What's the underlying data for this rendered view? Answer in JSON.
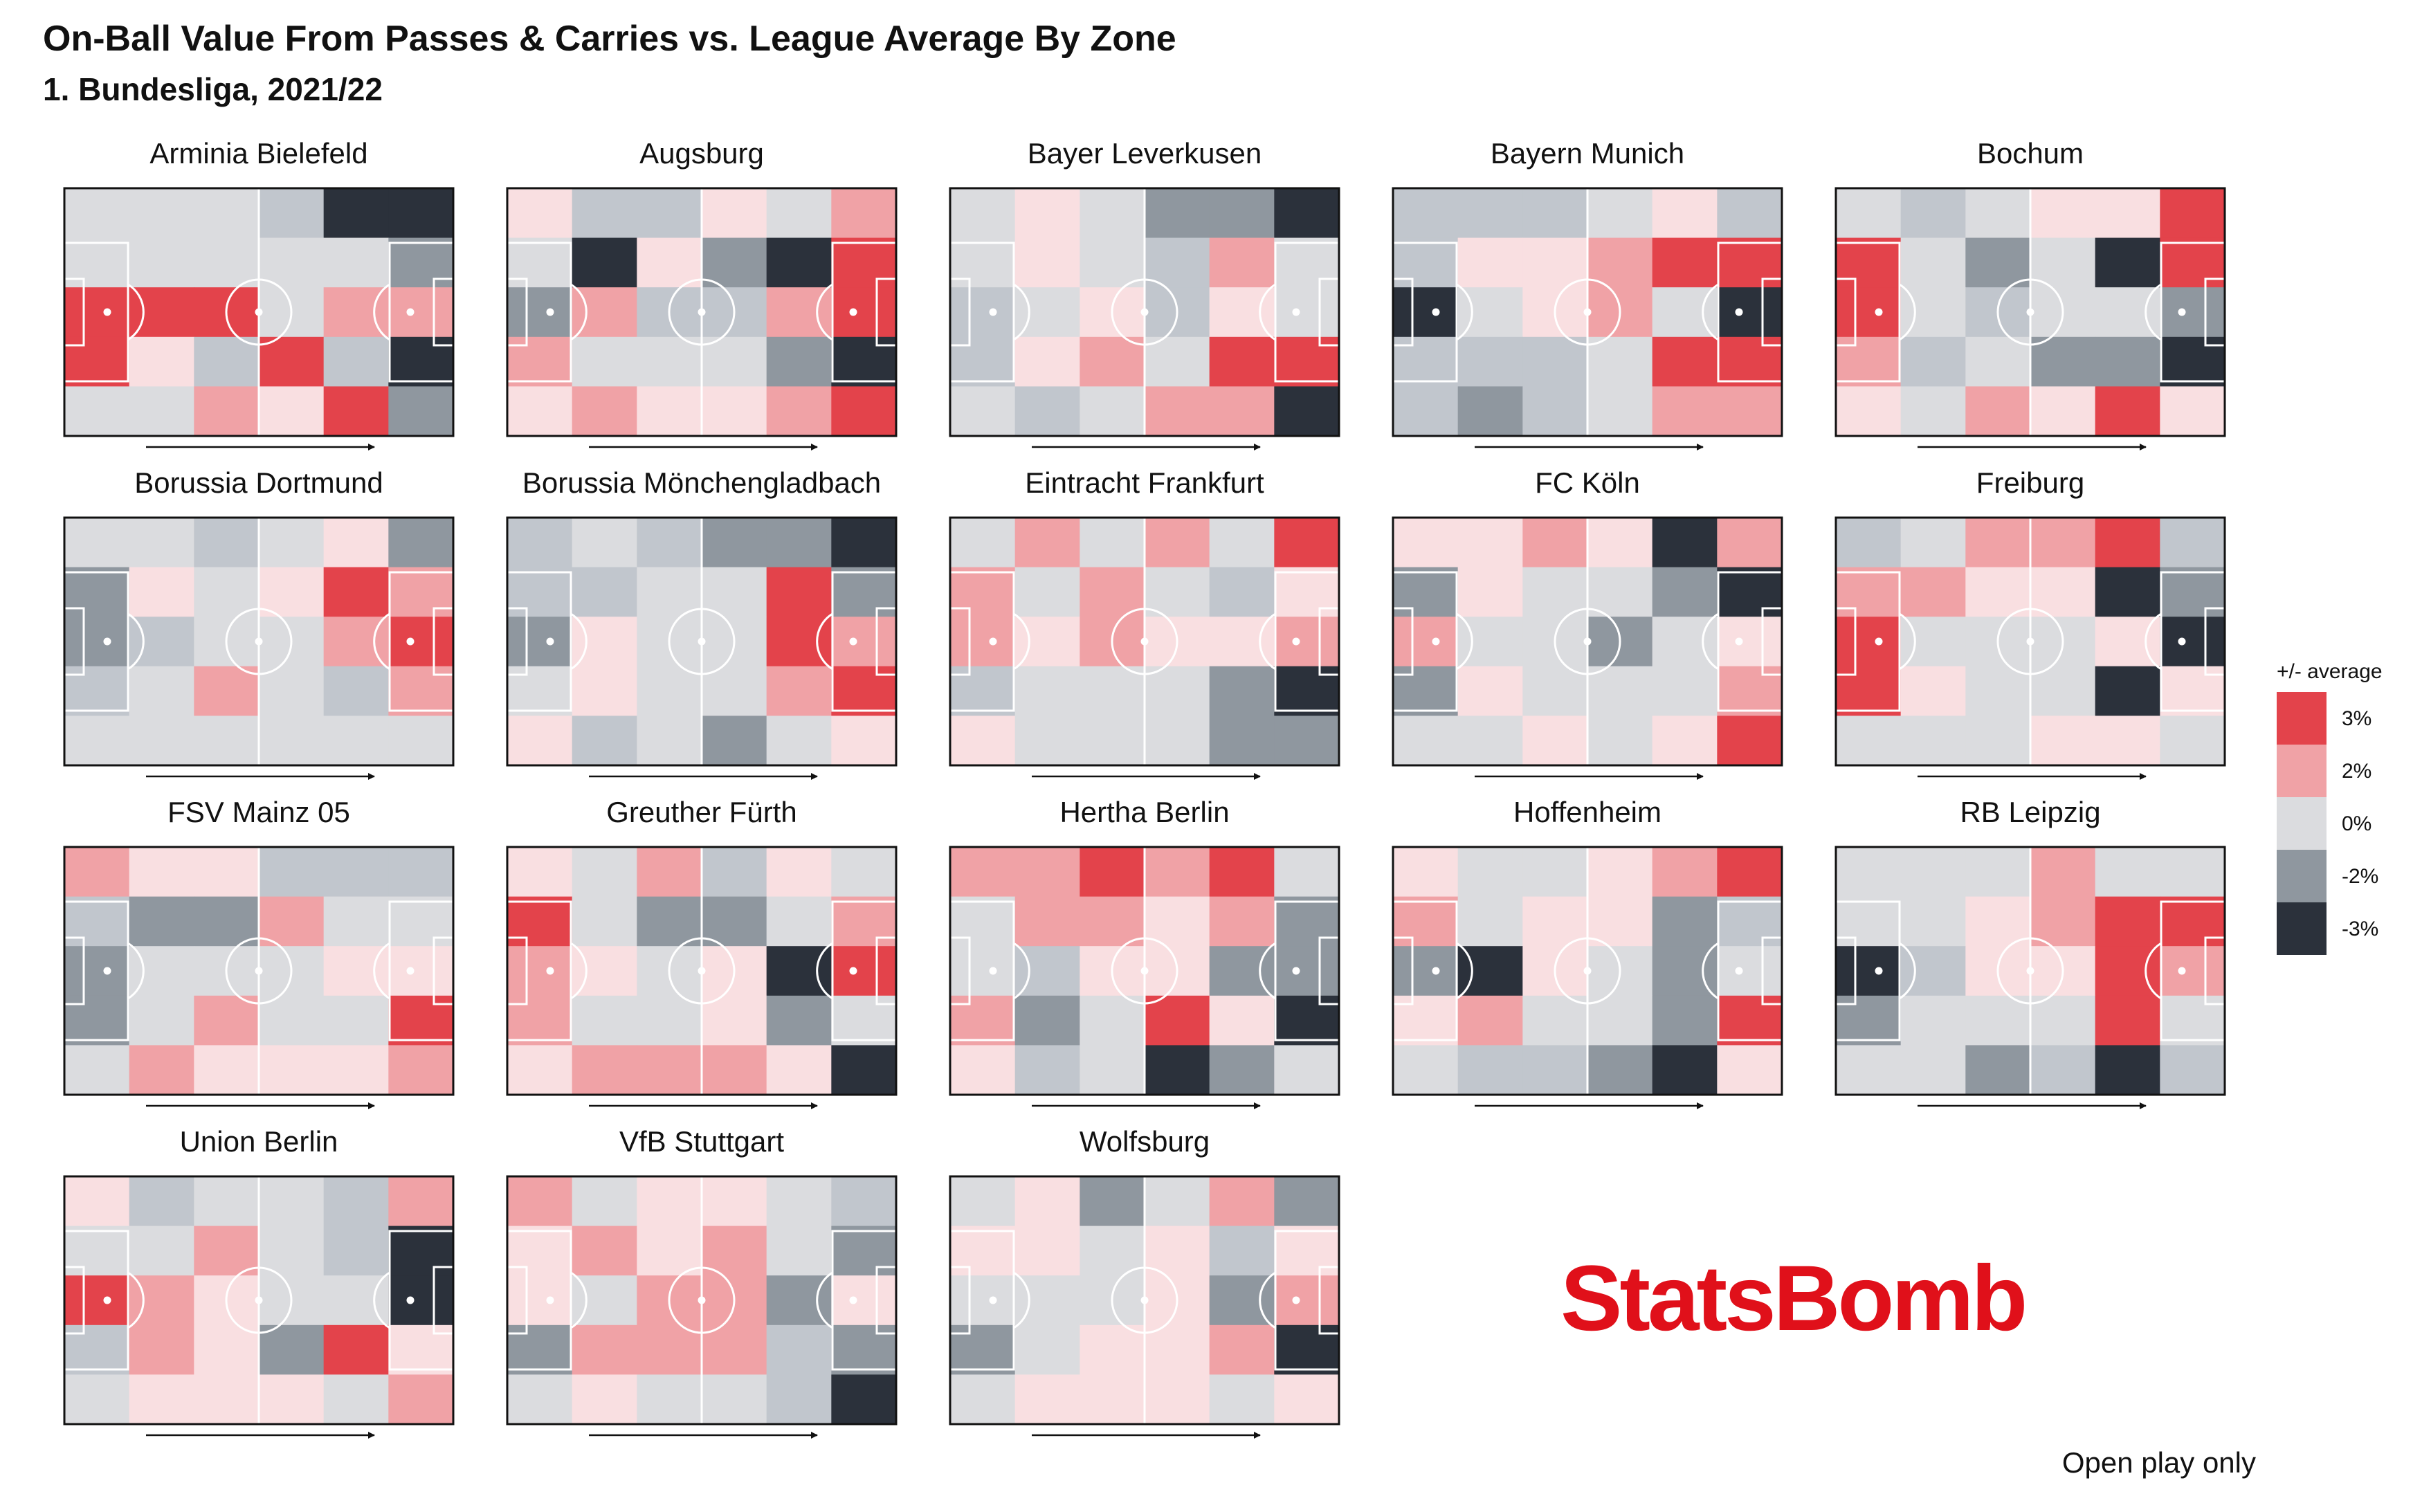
{
  "header": {
    "title": "On-Ball Value From Passes & Carries vs. League Average By Zone",
    "subtitle": "1. Bundesliga, 2021/22"
  },
  "footer": {
    "note": "Open play only",
    "logo_text": "StatsBomb"
  },
  "colors": {
    "c3": "#e3434b",
    "c2": "#f0a2a6",
    "c1": "#f9dfe1",
    "c0": "#dbdcdf",
    "cm1": "#c1c6cd",
    "cm2": "#8f979f",
    "cm3": "#2b313b",
    "pitch_lines": "#ffffff",
    "frame": "#111111"
  },
  "chart_data": {
    "type": "heatmap",
    "title": "On-Ball Value From Passes & Carries vs. League Average By Zone",
    "grid": {
      "columns": 6,
      "rows": 5
    },
    "direction": "left-to-right (attacking direction arrow below each pitch)",
    "legend": {
      "title": "+/- average",
      "placement": "right",
      "entries": [
        {
          "label": "3%",
          "value": 3,
          "color": "#e3434b"
        },
        {
          "label": "2%",
          "value": 2,
          "color": "#f0a2a6"
        },
        {
          "label": "0%",
          "value": 0,
          "color": "#dbdcdf"
        },
        {
          "label": "-2%",
          "value": -2,
          "color": "#8f979f"
        },
        {
          "label": "-3%",
          "value": -3,
          "color": "#2b313b"
        }
      ]
    },
    "panels": [
      {
        "team": "Arminia Bielefeld",
        "values": [
          [
            0,
            0,
            0,
            -1,
            -3,
            -3
          ],
          [
            0,
            0,
            0,
            0,
            0,
            -2
          ],
          [
            3,
            3,
            3,
            0,
            2,
            2
          ],
          [
            3,
            1,
            -1,
            3,
            -1,
            -3
          ],
          [
            0,
            0,
            2,
            1,
            3,
            -2
          ]
        ]
      },
      {
        "team": "Augsburg",
        "values": [
          [
            1,
            -1,
            -1,
            1,
            0,
            2
          ],
          [
            0,
            -3,
            1,
            -2,
            -3,
            3
          ],
          [
            -2,
            2,
            -1,
            -1,
            2,
            3
          ],
          [
            2,
            0,
            0,
            0,
            -2,
            -3
          ],
          [
            1,
            2,
            1,
            1,
            2,
            3
          ]
        ]
      },
      {
        "team": "Bayer Leverkusen",
        "values": [
          [
            0,
            1,
            0,
            -2,
            -2,
            -3
          ],
          [
            0,
            1,
            0,
            -1,
            2,
            0
          ],
          [
            -1,
            0,
            1,
            -1,
            1,
            0
          ],
          [
            -1,
            1,
            2,
            0,
            3,
            3
          ],
          [
            0,
            -1,
            0,
            2,
            2,
            -3
          ]
        ]
      },
      {
        "team": "Bayern Munich",
        "values": [
          [
            -1,
            -1,
            -1,
            0,
            1,
            -1
          ],
          [
            -1,
            1,
            1,
            2,
            3,
            3
          ],
          [
            -3,
            0,
            1,
            2,
            0,
            -3
          ],
          [
            -1,
            -1,
            -1,
            0,
            3,
            3
          ],
          [
            -1,
            -2,
            -1,
            0,
            2,
            2
          ]
        ]
      },
      {
        "team": "Bochum",
        "values": [
          [
            0,
            -1,
            0,
            1,
            1,
            3
          ],
          [
            3,
            0,
            -2,
            0,
            -3,
            3
          ],
          [
            3,
            0,
            -1,
            0,
            0,
            -2
          ],
          [
            2,
            -1,
            0,
            -2,
            -2,
            -3
          ],
          [
            1,
            0,
            2,
            1,
            3,
            1
          ]
        ]
      },
      {
        "team": "Borussia Dortmund",
        "values": [
          [
            0,
            0,
            -1,
            0,
            1,
            -2
          ],
          [
            -2,
            1,
            0,
            1,
            3,
            2
          ],
          [
            -2,
            -1,
            0,
            0,
            2,
            3
          ],
          [
            -1,
            0,
            2,
            0,
            -1,
            2
          ],
          [
            0,
            0,
            0,
            0,
            0,
            0
          ]
        ]
      },
      {
        "team": "Borussia Mönchengladbach",
        "values": [
          [
            -1,
            0,
            -1,
            -2,
            -2,
            -3
          ],
          [
            -1,
            -1,
            0,
            0,
            3,
            -2
          ],
          [
            -2,
            1,
            0,
            0,
            3,
            2
          ],
          [
            0,
            1,
            0,
            0,
            2,
            3
          ],
          [
            1,
            -1,
            0,
            -2,
            0,
            1
          ]
        ]
      },
      {
        "team": "Eintracht Frankfurt",
        "values": [
          [
            0,
            2,
            0,
            2,
            0,
            3
          ],
          [
            2,
            0,
            2,
            0,
            -1,
            1
          ],
          [
            2,
            1,
            2,
            1,
            1,
            2
          ],
          [
            -1,
            0,
            0,
            0,
            -2,
            -3
          ],
          [
            1,
            0,
            0,
            0,
            -2,
            -2
          ]
        ]
      },
      {
        "team": "FC Köln",
        "values": [
          [
            1,
            1,
            2,
            1,
            -3,
            2
          ],
          [
            -2,
            1,
            0,
            0,
            -2,
            -3
          ],
          [
            2,
            0,
            0,
            -2,
            0,
            1
          ],
          [
            -2,
            1,
            0,
            0,
            0,
            2
          ],
          [
            0,
            0,
            1,
            0,
            1,
            3
          ]
        ]
      },
      {
        "team": "Freiburg",
        "values": [
          [
            -1,
            0,
            2,
            2,
            3,
            -1
          ],
          [
            2,
            2,
            1,
            1,
            -3,
            -2
          ],
          [
            3,
            0,
            0,
            0,
            1,
            -3
          ],
          [
            3,
            1,
            0,
            0,
            -3,
            1
          ],
          [
            0,
            0,
            0,
            1,
            1,
            0
          ]
        ]
      },
      {
        "team": "FSV Mainz 05",
        "values": [
          [
            2,
            1,
            1,
            -1,
            -1,
            -1
          ],
          [
            -1,
            -2,
            -2,
            2,
            0,
            0
          ],
          [
            -2,
            0,
            0,
            0,
            1,
            1
          ],
          [
            -2,
            0,
            2,
            0,
            0,
            3
          ],
          [
            0,
            2,
            1,
            1,
            1,
            2
          ]
        ]
      },
      {
        "team": "Greuther Fürth",
        "values": [
          [
            1,
            0,
            2,
            -1,
            1,
            0
          ],
          [
            3,
            0,
            -2,
            -2,
            0,
            2
          ],
          [
            2,
            1,
            0,
            1,
            -3,
            3
          ],
          [
            2,
            0,
            0,
            1,
            -2,
            0
          ],
          [
            1,
            2,
            2,
            2,
            1,
            -3
          ]
        ]
      },
      {
        "team": "Hertha Berlin",
        "values": [
          [
            2,
            2,
            3,
            2,
            3,
            0
          ],
          [
            0,
            2,
            2,
            1,
            2,
            -2
          ],
          [
            0,
            -1,
            1,
            1,
            -2,
            -2
          ],
          [
            2,
            -2,
            0,
            3,
            1,
            -3
          ],
          [
            1,
            -1,
            0,
            -3,
            -2,
            0
          ]
        ]
      },
      {
        "team": "Hoffenheim",
        "values": [
          [
            1,
            0,
            0,
            1,
            2,
            3
          ],
          [
            2,
            0,
            1,
            1,
            -2,
            -1
          ],
          [
            -2,
            -3,
            1,
            0,
            -2,
            0
          ],
          [
            1,
            2,
            0,
            0,
            -2,
            3
          ],
          [
            0,
            -1,
            -1,
            -2,
            -3,
            1
          ]
        ]
      },
      {
        "team": "RB Leipzig",
        "values": [
          [
            0,
            0,
            0,
            2,
            0,
            0
          ],
          [
            0,
            0,
            1,
            2,
            3,
            3
          ],
          [
            -3,
            -1,
            1,
            1,
            3,
            2
          ],
          [
            -2,
            0,
            0,
            0,
            3,
            0
          ],
          [
            0,
            0,
            -2,
            -1,
            -3,
            -1
          ]
        ]
      },
      {
        "team": "Union Berlin",
        "values": [
          [
            1,
            -1,
            0,
            0,
            -1,
            2
          ],
          [
            0,
            0,
            2,
            0,
            -1,
            -3
          ],
          [
            3,
            2,
            1,
            0,
            0,
            -3
          ],
          [
            -1,
            2,
            1,
            -2,
            3,
            1
          ],
          [
            0,
            1,
            1,
            1,
            0,
            2
          ]
        ]
      },
      {
        "team": "VfB Stuttgart",
        "values": [
          [
            2,
            0,
            1,
            1,
            0,
            -1
          ],
          [
            1,
            2,
            1,
            2,
            0,
            -2
          ],
          [
            1,
            0,
            2,
            2,
            -2,
            1
          ],
          [
            -2,
            2,
            2,
            2,
            -1,
            -2
          ],
          [
            0,
            1,
            0,
            0,
            -1,
            -3
          ]
        ]
      },
      {
        "team": "Wolfsburg",
        "values": [
          [
            0,
            1,
            -2,
            0,
            2,
            -2
          ],
          [
            1,
            1,
            0,
            1,
            -1,
            1
          ],
          [
            0,
            0,
            0,
            1,
            -2,
            2
          ],
          [
            -2,
            0,
            1,
            1,
            2,
            -3
          ],
          [
            0,
            1,
            1,
            1,
            0,
            1
          ]
        ]
      }
    ]
  }
}
